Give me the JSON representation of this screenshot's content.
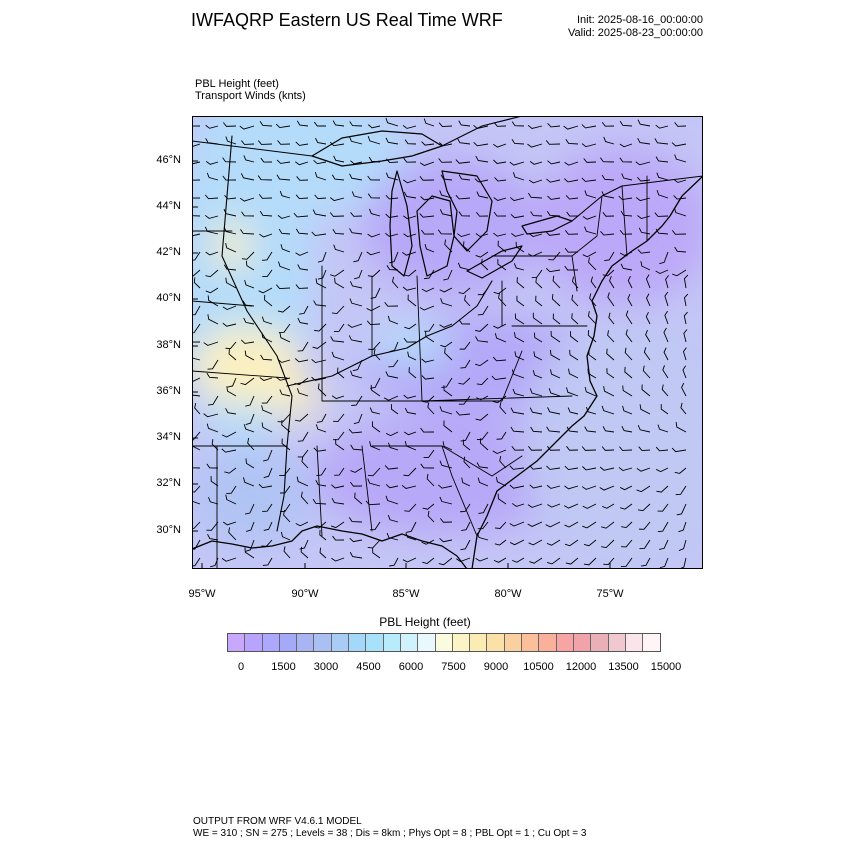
{
  "header": {
    "title": "IWFAQRP Eastern US Real Time WRF",
    "init": "Init: 2025-08-16_00:00:00",
    "valid": "Valid: 2025-08-23_00:00:00"
  },
  "fields": {
    "line1": "PBL Height   (feet)",
    "line2": "Transport Winds   (knts)"
  },
  "map": {
    "lat_labels": [
      "46°N",
      "44°N",
      "42°N",
      "40°N",
      "38°N",
      "36°N",
      "34°N",
      "32°N",
      "30°N"
    ],
    "lon_labels": [
      "95°W",
      "90°W",
      "85°W",
      "80°W",
      "75°W"
    ],
    "colors": {
      "violet": "#c0a8ff",
      "periwinkle": "#b4bcf4",
      "lightblue": "#b4dcfa",
      "cream": "#fbf0c0",
      "ocean": "#c0c8f4"
    }
  },
  "colorbar": {
    "title": "PBL Height  (feet)",
    "labels": [
      "0",
      "1500",
      "3000",
      "4500",
      "6000",
      "7500",
      "9000",
      "10500",
      "12000",
      "13500",
      "15000"
    ],
    "swatches": [
      "#c8a8ff",
      "#b8a4ff",
      "#aca8ff",
      "#a4aaf8",
      "#a8b4f4",
      "#aac0f4",
      "#a8ccf6",
      "#a4d8fa",
      "#a8e2fa",
      "#b8ecfc",
      "#d0f2fc",
      "#e8f8fc",
      "#fbfbe0",
      "#fbf4c4",
      "#fbecb4",
      "#fbe0a8",
      "#fbd0a0",
      "#fbc09a",
      "#fbb09c",
      "#f8a4a4",
      "#f0a4aa",
      "#eab0b8",
      "#f0c8d0",
      "#fbe4ea",
      "#fff4f6"
    ]
  },
  "footer": {
    "line1": "OUTPUT FROM WRF V4.6.1 MODEL",
    "line2": "WE = 310 ; SN = 275 ; Levels = 38 ; Dis = 8km ; Phys Opt = 8 ; PBL Opt = 1 ; Cu Opt = 3"
  }
}
